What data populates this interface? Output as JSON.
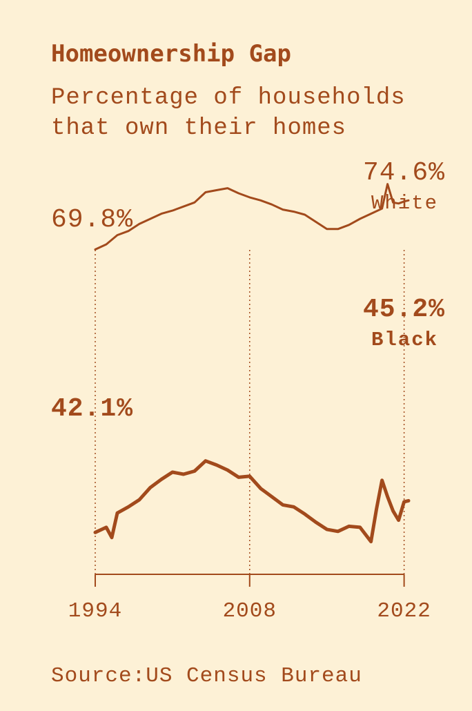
{
  "chart_data": {
    "type": "line",
    "title": "Homeownership Gap",
    "subtitle": "Percentage of households that own their homes",
    "source": "Source:US Census Bureau",
    "x_ticks": [
      "1994",
      "2008",
      "2022"
    ],
    "xlim": [
      1994,
      2022.4
    ],
    "ylim": [
      38,
      78
    ],
    "grid": "vertical dotted lines at tick years",
    "series": [
      {
        "name": "White",
        "color": "#a24a1c",
        "start_label": "69.8%",
        "end_label": "74.6%",
        "points": [
          [
            1994.0,
            69.8
          ],
          [
            1995.0,
            70.3
          ],
          [
            1996.0,
            71.2
          ],
          [
            1997.0,
            71.6
          ],
          [
            1998.0,
            72.3
          ],
          [
            1999.0,
            72.8
          ],
          [
            2000.0,
            73.3
          ],
          [
            2001.0,
            73.6
          ],
          [
            2002.0,
            74.0
          ],
          [
            2003.0,
            74.4
          ],
          [
            2004.0,
            75.4
          ],
          [
            2005.0,
            75.6
          ],
          [
            2006.0,
            75.8
          ],
          [
            2007.0,
            75.3
          ],
          [
            2008.0,
            74.9
          ],
          [
            2009.0,
            74.6
          ],
          [
            2010.0,
            74.2
          ],
          [
            2011.0,
            73.7
          ],
          [
            2012.0,
            73.5
          ],
          [
            2013.0,
            73.2
          ],
          [
            2014.0,
            72.5
          ],
          [
            2015.0,
            71.8
          ],
          [
            2016.0,
            71.8
          ],
          [
            2017.0,
            72.2
          ],
          [
            2018.0,
            72.8
          ],
          [
            2019.0,
            73.3
          ],
          [
            2020.0,
            73.8
          ],
          [
            2020.5,
            76.2
          ],
          [
            2021.0,
            74.4
          ],
          [
            2021.5,
            74.3
          ],
          [
            2022.0,
            74.5
          ],
          [
            2022.4,
            74.6
          ]
        ]
      },
      {
        "name": "Black",
        "color": "#a24a1c",
        "start_label": "42.1%",
        "end_label": "45.2%",
        "points": [
          [
            1994.0,
            42.1
          ],
          [
            1995.0,
            42.6
          ],
          [
            1995.5,
            41.6
          ],
          [
            1996.0,
            44.0
          ],
          [
            1997.0,
            44.6
          ],
          [
            1998.0,
            45.3
          ],
          [
            1999.0,
            46.5
          ],
          [
            2000.0,
            47.3
          ],
          [
            2001.0,
            48.0
          ],
          [
            2002.0,
            47.8
          ],
          [
            2003.0,
            48.1
          ],
          [
            2004.0,
            49.1
          ],
          [
            2005.0,
            48.7
          ],
          [
            2006.0,
            48.2
          ],
          [
            2007.0,
            47.5
          ],
          [
            2008.0,
            47.6
          ],
          [
            2009.0,
            46.4
          ],
          [
            2010.0,
            45.6
          ],
          [
            2011.0,
            44.8
          ],
          [
            2012.0,
            44.6
          ],
          [
            2013.0,
            43.9
          ],
          [
            2014.0,
            43.1
          ],
          [
            2015.0,
            42.4
          ],
          [
            2016.0,
            42.2
          ],
          [
            2017.0,
            42.7
          ],
          [
            2018.0,
            42.6
          ],
          [
            2019.0,
            41.2
          ],
          [
            2019.5,
            44.4
          ],
          [
            2020.0,
            47.2
          ],
          [
            2020.5,
            45.6
          ],
          [
            2021.0,
            44.2
          ],
          [
            2021.5,
            43.3
          ],
          [
            2022.0,
            45.1
          ],
          [
            2022.4,
            45.2
          ]
        ]
      }
    ]
  }
}
